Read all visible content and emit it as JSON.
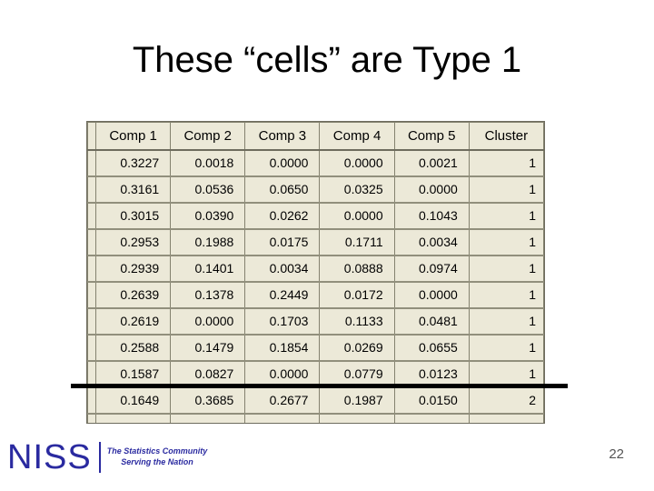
{
  "slide": {
    "title": "These “cells” are Type 1",
    "page_number": "22"
  },
  "table": {
    "headers": [
      "Comp 1",
      "Comp 2",
      "Comp 3",
      "Comp 4",
      "Comp 5",
      "Cluster"
    ],
    "rows": [
      [
        "0.3227",
        "0.0018",
        "0.0000",
        "0.0000",
        "0.0021",
        "1"
      ],
      [
        "0.3161",
        "0.0536",
        "0.0650",
        "0.0325",
        "0.0000",
        "1"
      ],
      [
        "0.3015",
        "0.0390",
        "0.0262",
        "0.0000",
        "0.1043",
        "1"
      ],
      [
        "0.2953",
        "0.1988",
        "0.0175",
        "0.1711",
        "0.0034",
        "1"
      ],
      [
        "0.2939",
        "0.1401",
        "0.0034",
        "0.0888",
        "0.0974",
        "1"
      ],
      [
        "0.2639",
        "0.1378",
        "0.2449",
        "0.0172",
        "0.0000",
        "1"
      ],
      [
        "0.2619",
        "0.0000",
        "0.1703",
        "0.1133",
        "0.0481",
        "1"
      ],
      [
        "0.2588",
        "0.1479",
        "0.1854",
        "0.0269",
        "0.0655",
        "1"
      ],
      [
        "0.1587",
        "0.0827",
        "0.0000",
        "0.0779",
        "0.0123",
        "1"
      ],
      [
        "0.1649",
        "0.3685",
        "0.2677",
        "0.1987",
        "0.0150",
        "2"
      ]
    ],
    "divider_after_row": 9,
    "colors": {
      "cell_bg": "#ece9d8",
      "grid_line": "#84826f",
      "divider_line": "#000000",
      "text": "#000000"
    }
  },
  "footer": {
    "logo_text": "NISS",
    "tagline_line1": "The Statistics Community",
    "tagline_line2": "Serving the Nation",
    "logo_color": "#2a2aa0"
  }
}
